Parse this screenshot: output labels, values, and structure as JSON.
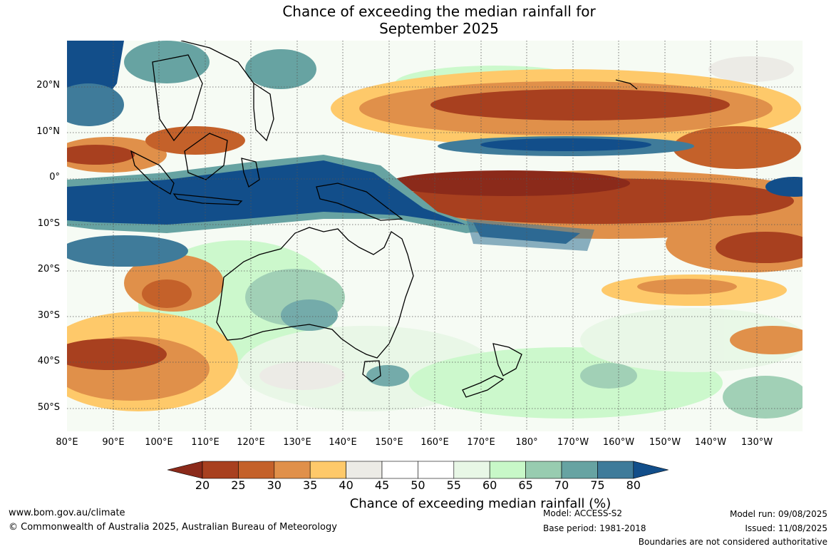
{
  "title": {
    "line1": "Chance of exceeding the median rainfall for",
    "line2": "September 2025"
  },
  "axes": {
    "lat_labels": [
      "20°N",
      "10°N",
      "0°",
      "10°S",
      "20°S",
      "30°S",
      "40°S",
      "50°S"
    ],
    "lon_labels": [
      "80°E",
      "90°E",
      "100°E",
      "110°E",
      "120°E",
      "130°E",
      "140°E",
      "150°E",
      "160°E",
      "170°E",
      "180°",
      "170°W",
      "160°W",
      "150°W",
      "140°W",
      "130°W"
    ]
  },
  "legend": {
    "ticks": [
      "20",
      "25",
      "30",
      "35",
      "40",
      "45",
      "50",
      "55",
      "60",
      "65",
      "70",
      "75",
      "80"
    ],
    "colors": [
      "#8b2a1a",
      "#a8401f",
      "#c4612a",
      "#e0904a",
      "#fec96a",
      "#ecebe6",
      "#ffffff",
      "#ffffff",
      "#e8f7e6",
      "#c8f8c8",
      "#98ccb0",
      "#67a3a2",
      "#3f7b9a",
      "#124e8a"
    ],
    "label": "Chance of exceeding median rainfall (%)"
  },
  "footer": {
    "url": "www.bom.gov.au/climate",
    "copyright": "© Commonwealth of Australia 2025, Australian Bureau of Meteorology",
    "model": "Model: ACCESS-S2",
    "base_period": "Base period: 1981-2018",
    "model_run": "Model run: 09/08/2025",
    "issued": "Issued: 11/08/2025",
    "disclaimer": "Boundaries are not considered authoritative"
  }
}
